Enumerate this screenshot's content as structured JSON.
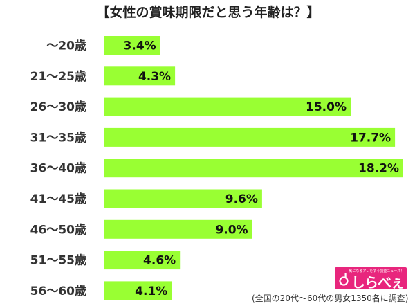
{
  "chart_data": {
    "type": "bar",
    "orientation": "horizontal",
    "title": "【女性の賞味期限だと思う年齢は？】",
    "categories": [
      "～20歳",
      "21～25歳",
      "26～30歳",
      "31～35歳",
      "36～40歳",
      "41～45歳",
      "46～50歳",
      "51～55歳",
      "56～60歳"
    ],
    "values": [
      3.4,
      4.3,
      15.0,
      17.7,
      18.2,
      9.6,
      9.0,
      4.6,
      4.1
    ],
    "value_labels": [
      "3.4%",
      "4.3%",
      "15.0%",
      "17.7%",
      "18.2%",
      "9.6%",
      "9.0%",
      "4.6%",
      "4.1%"
    ],
    "xlim": [
      0,
      18.2
    ],
    "grid": false,
    "bar_color": "#99ff33"
  },
  "logo": {
    "tagline": "気になるアレをすぐ調査ニュース！",
    "text": "しらべぇ",
    "color": "#e8267d"
  },
  "footnote": "(全国の20代～60代の男女1350名に調査)"
}
